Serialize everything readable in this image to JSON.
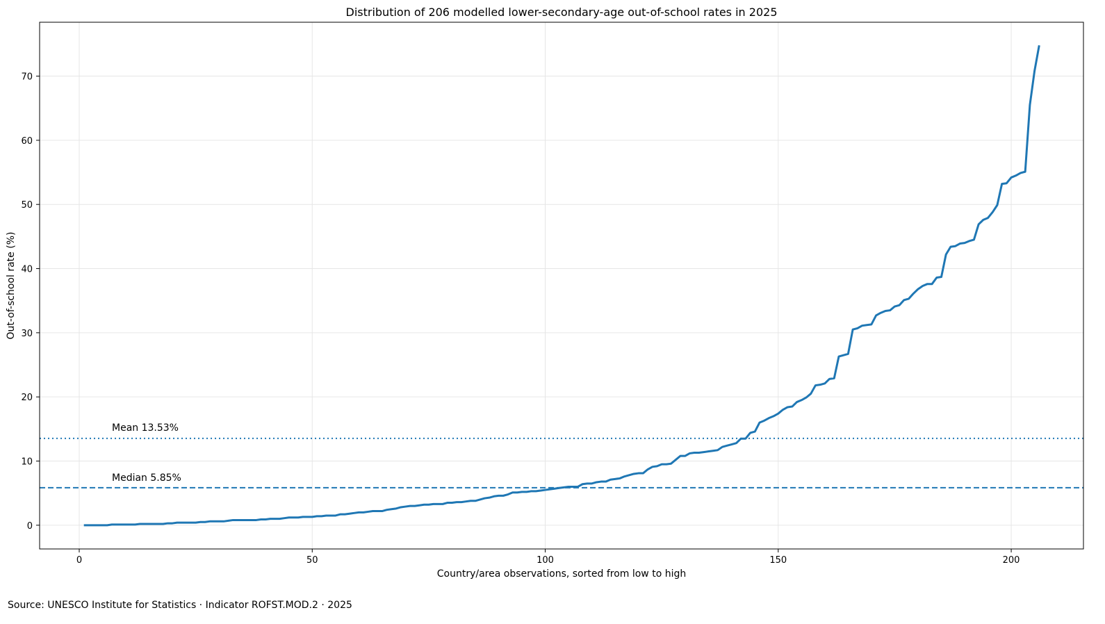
{
  "chart_data": {
    "type": "line",
    "title": "Distribution of 206 modelled lower-secondary-age out-of-school rates in 2025",
    "xlabel": "Country/area observations, sorted from low to high",
    "ylabel": "Out-of-school rate (%)",
    "xlim": [
      -8.5,
      215.5
    ],
    "ylim": [
      -3.7,
      78.4
    ],
    "x_ticks": [
      0,
      50,
      100,
      150,
      200
    ],
    "y_ticks": [
      0,
      10,
      20,
      30,
      40,
      50,
      60,
      70
    ],
    "grid": true,
    "colors": {
      "series": "#1f77b4",
      "grid": "#e6e6e6"
    },
    "series": [
      {
        "x_start": 1,
        "values": [
          0.0,
          0.0,
          0.0,
          0.0,
          0.0,
          0.0,
          0.1,
          0.1,
          0.1,
          0.1,
          0.1,
          0.1,
          0.2,
          0.2,
          0.2,
          0.2,
          0.2,
          0.2,
          0.3,
          0.3,
          0.4,
          0.4,
          0.4,
          0.4,
          0.4,
          0.5,
          0.5,
          0.6,
          0.6,
          0.6,
          0.6,
          0.7,
          0.8,
          0.8,
          0.8,
          0.8,
          0.8,
          0.8,
          0.9,
          0.9,
          1.0,
          1.0,
          1.0,
          1.1,
          1.2,
          1.2,
          1.2,
          1.3,
          1.3,
          1.3,
          1.4,
          1.4,
          1.5,
          1.5,
          1.5,
          1.7,
          1.7,
          1.8,
          1.9,
          2.0,
          2.0,
          2.1,
          2.2,
          2.2,
          2.2,
          2.4,
          2.5,
          2.6,
          2.8,
          2.9,
          3.0,
          3.0,
          3.1,
          3.2,
          3.2,
          3.3,
          3.3,
          3.3,
          3.5,
          3.5,
          3.6,
          3.6,
          3.7,
          3.8,
          3.8,
          4.0,
          4.2,
          4.3,
          4.5,
          4.6,
          4.6,
          4.8,
          5.1,
          5.1,
          5.2,
          5.2,
          5.3,
          5.3,
          5.4,
          5.5,
          5.6,
          5.7,
          5.8,
          5.9,
          6.0,
          6.0,
          6.0,
          6.4,
          6.5,
          6.5,
          6.7,
          6.8,
          6.8,
          7.1,
          7.2,
          7.3,
          7.6,
          7.8,
          8.0,
          8.1,
          8.1,
          8.7,
          9.1,
          9.2,
          9.5,
          9.5,
          9.6,
          10.2,
          10.8,
          10.8,
          11.2,
          11.3,
          11.3,
          11.4,
          11.5,
          11.6,
          11.7,
          12.2,
          12.4,
          12.6,
          12.8,
          13.5,
          13.5,
          14.4,
          14.6,
          16.0,
          16.3,
          16.7,
          17.0,
          17.4,
          18.0,
          18.4,
          18.5,
          19.2,
          19.5,
          19.9,
          20.5,
          21.8,
          21.9,
          22.1,
          22.8,
          22.9,
          26.3,
          26.5,
          26.7,
          30.5,
          30.7,
          31.1,
          31.2,
          31.3,
          32.7,
          33.1,
          33.4,
          33.5,
          34.1,
          34.3,
          35.1,
          35.3,
          36.1,
          36.8,
          37.3,
          37.6,
          37.6,
          38.6,
          38.7,
          42.2,
          43.4,
          43.5,
          43.9,
          44.0,
          44.3,
          44.5,
          46.9,
          47.6,
          47.9,
          48.8,
          49.9,
          53.2,
          53.3,
          54.2,
          54.5,
          54.9,
          55.1,
          65.5,
          70.8,
          74.8
        ]
      }
    ],
    "reference_lines": [
      {
        "label": "Mean 13.53%",
        "value": 13.53,
        "style": "dotted"
      },
      {
        "label": "Median 5.85%",
        "value": 5.85,
        "style": "dashed"
      }
    ],
    "source": "Source: UNESCO Institute for Statistics · Indicator ROFST.MOD.2 · 2025"
  }
}
